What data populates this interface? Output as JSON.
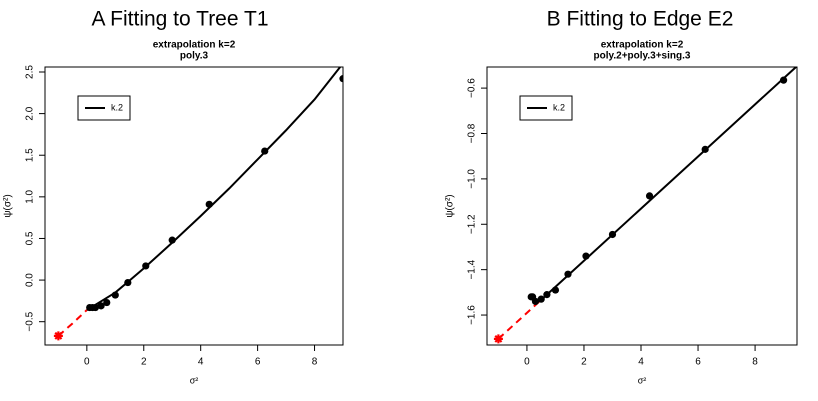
{
  "chart_data": [
    {
      "type": "scatter",
      "panel_title": "A   Fitting to Tree T1",
      "title": "extrapolation k=2",
      "subtitle": "poly.3",
      "x_label": "σ²",
      "y_label": "ψ(σ²)",
      "xlim": [
        -1.47,
        9.0
      ],
      "ylim": [
        -0.78,
        2.56
      ],
      "xticks": [
        0,
        2,
        4,
        6,
        8
      ],
      "yticks": [
        {
          "value": -0.5,
          "label": "−0.5"
        },
        {
          "value": 0,
          "label": "0.0"
        },
        {
          "value": 0.5,
          "label": "0.5"
        },
        {
          "value": 1,
          "label": "1.0"
        },
        {
          "value": 1.5,
          "label": "1.5"
        },
        {
          "value": 2,
          "label": "2.0"
        },
        {
          "value": 2.5,
          "label": "2.5"
        }
      ],
      "points": {
        "color": "#000000",
        "x": [
          0.1,
          0.2,
          0.3,
          0.5,
          0.7,
          1.0,
          1.44,
          2.07,
          3.0,
          4.3,
          6.25,
          9.0
        ],
        "values": [
          -0.33,
          -0.33,
          -0.33,
          -0.31,
          -0.27,
          -0.18,
          -0.03,
          0.17,
          0.48,
          0.91,
          1.55,
          2.42
        ]
      },
      "series": [
        {
          "name": "k.2",
          "color": "#000000",
          "x": [
            0,
            1,
            2,
            3,
            4,
            5,
            6,
            7,
            8,
            8.9
          ],
          "values": [
            -0.36,
            -0.15,
            0.14,
            0.45,
            0.77,
            1.1,
            1.45,
            1.8,
            2.17,
            2.56
          ]
        }
      ],
      "extrapolation": {
        "color": "#ff0000",
        "x": [
          -1,
          -0.5,
          0
        ],
        "values": [
          -0.67,
          -0.52,
          -0.36
        ]
      },
      "estimate": {
        "color": "#ff0000",
        "x": [
          -1
        ],
        "values": [
          -0.67
        ]
      }
    },
    {
      "type": "scatter",
      "panel_title": "B   Fitting to Edge E2",
      "title": "extrapolation k=2",
      "subtitle": "poly.2+poly.3+sing.3",
      "x_label": "σ²",
      "y_label": "ψ(σ²)",
      "xlim": [
        -1.4,
        9.47
      ],
      "ylim": [
        -1.732,
        -0.507
      ],
      "xticks": [
        0,
        2,
        4,
        6,
        8
      ],
      "yticks": [
        {
          "value": -1.6,
          "label": "−1.6"
        },
        {
          "value": -1.4,
          "label": "−1.4"
        },
        {
          "value": -1.2,
          "label": "−1.2"
        },
        {
          "value": -1.0,
          "label": "−1.0"
        },
        {
          "value": -0.8,
          "label": "−0.8"
        },
        {
          "value": -0.6,
          "label": "−0.6"
        }
      ],
      "points": {
        "color": "#000000",
        "x": [
          0.15,
          0.2,
          0.3,
          0.5,
          0.7,
          1.0,
          1.44,
          2.07,
          3.0,
          4.3,
          6.25,
          9.0
        ],
        "values": [
          -1.52,
          -1.52,
          -1.54,
          -1.53,
          -1.51,
          -1.49,
          -1.42,
          -1.34,
          -1.245,
          -1.075,
          -0.87,
          -0.565
        ]
      },
      "series": [
        {
          "name": "k.2",
          "color": "#000000",
          "x": [
            0.5,
            9.47
          ],
          "values": [
            -1.533,
            -0.503
          ]
        }
      ],
      "extrapolation": {
        "color": "#ff0000",
        "x": [
          -1,
          0.5
        ],
        "values": [
          -1.705,
          -1.533
        ]
      },
      "estimate": {
        "color": "#ff0000",
        "x": [
          -1
        ],
        "values": [
          -1.705
        ]
      }
    }
  ]
}
